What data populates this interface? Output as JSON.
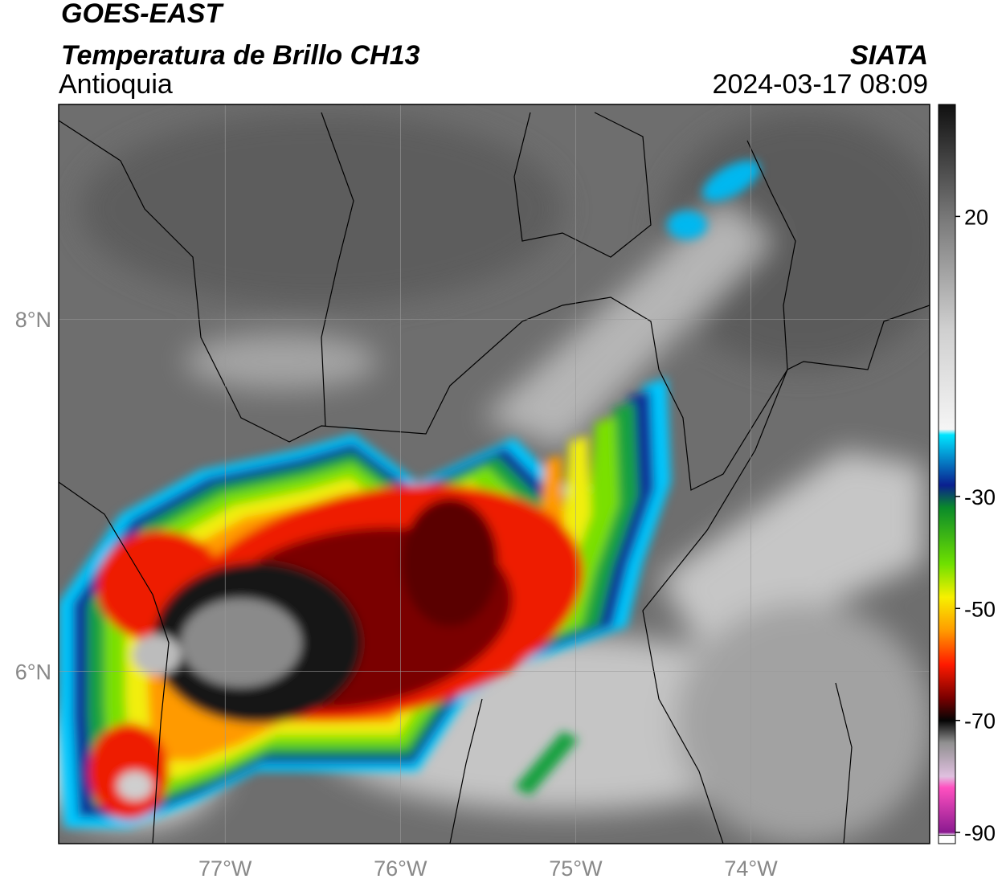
{
  "header": {
    "satellite": "GOES-EAST",
    "product": "Temperatura de Brillo CH13",
    "region": "Antioquia",
    "source": "SIATA",
    "timestamp": "2024-03-17 08:09"
  },
  "map": {
    "xlim": [
      -77.95,
      -72.98
    ],
    "ylim": [
      5.02,
      9.22
    ],
    "xticks": [
      {
        "value": -77,
        "label": "77°W"
      },
      {
        "value": -76,
        "label": "76°W"
      },
      {
        "value": -75,
        "label": "75°W"
      },
      {
        "value": -74,
        "label": "74°W"
      }
    ],
    "yticks": [
      {
        "value": 8,
        "label": "8°N"
      },
      {
        "value": 6,
        "label": "6°N"
      }
    ],
    "grid": true
  },
  "colorbar": {
    "lim": [
      -92,
      40
    ],
    "ticks": [
      20,
      -30,
      -50,
      -70,
      -90
    ],
    "stops": [
      {
        "value": 40,
        "color": "#101010"
      },
      {
        "value": 20,
        "color": "#777777"
      },
      {
        "value": 0,
        "color": "#cfcfcf"
      },
      {
        "value": -18,
        "color": "#f5f5f5"
      },
      {
        "value": -19,
        "color": "#00e5ff"
      },
      {
        "value": -28,
        "color": "#0a1f8f"
      },
      {
        "value": -32,
        "color": "#0a8a2a"
      },
      {
        "value": -42,
        "color": "#6ee000"
      },
      {
        "value": -48,
        "color": "#f7f000"
      },
      {
        "value": -54,
        "color": "#ff9a00"
      },
      {
        "value": -60,
        "color": "#ff1a00"
      },
      {
        "value": -66,
        "color": "#7a0000"
      },
      {
        "value": -70,
        "color": "#050505"
      },
      {
        "value": -74,
        "color": "#909090"
      },
      {
        "value": -80,
        "color": "#e0c0e0"
      },
      {
        "value": -82,
        "color": "#ff50c0"
      },
      {
        "value": -90,
        "color": "#8a1a90"
      },
      {
        "value": -90.5,
        "color": "#ffffff"
      }
    ]
  }
}
